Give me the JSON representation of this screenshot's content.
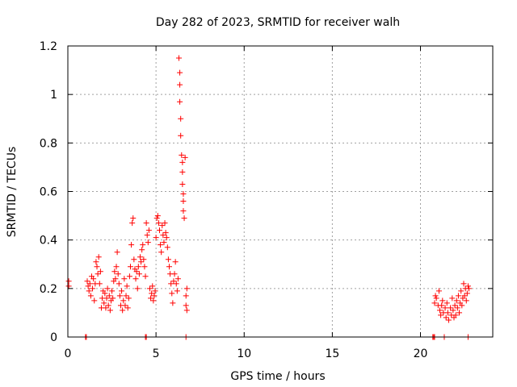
{
  "chart_data": {
    "type": "scatter",
    "title": "Day 282 of 2023, SRMTID for receiver walh",
    "xlabel": "GPS time / hours",
    "ylabel": "SRMTID / TECUs",
    "xlim": [
      0,
      24.1
    ],
    "ylim": [
      0,
      1.2
    ],
    "x_ticks": [
      0,
      5,
      10,
      15,
      20
    ],
    "x_tick_labels": [
      "0",
      "5",
      "10",
      "15",
      "20"
    ],
    "y_ticks": [
      0,
      0.2,
      0.4,
      0.6,
      0.8,
      1.0,
      1.2
    ],
    "y_tick_labels": [
      "0",
      "0.2",
      "0.4",
      "0.6",
      "0.8",
      "1",
      "1.2"
    ],
    "grid": true,
    "marker": "plus",
    "color": "#ff0000",
    "series": [
      {
        "name": "SRMTID",
        "points": [
          [
            0.05,
            0.23
          ],
          [
            0.05,
            0.21
          ],
          [
            1.0,
            0.0
          ],
          [
            1.05,
            0.0
          ],
          [
            1.1,
            0.23
          ],
          [
            1.15,
            0.21
          ],
          [
            1.2,
            0.19
          ],
          [
            1.25,
            0.22
          ],
          [
            1.3,
            0.17
          ],
          [
            1.35,
            0.25
          ],
          [
            1.4,
            0.2
          ],
          [
            1.45,
            0.24
          ],
          [
            1.5,
            0.15
          ],
          [
            1.55,
            0.22
          ],
          [
            1.6,
            0.31
          ],
          [
            1.65,
            0.29
          ],
          [
            1.7,
            0.26
          ],
          [
            1.75,
            0.33
          ],
          [
            1.8,
            0.22
          ],
          [
            1.85,
            0.27
          ],
          [
            1.9,
            0.12
          ],
          [
            1.95,
            0.16
          ],
          [
            2.0,
            0.19
          ],
          [
            2.05,
            0.14
          ],
          [
            2.1,
            0.18
          ],
          [
            2.15,
            0.12
          ],
          [
            2.2,
            0.16
          ],
          [
            2.25,
            0.2
          ],
          [
            2.3,
            0.13
          ],
          [
            2.35,
            0.17
          ],
          [
            2.4,
            0.11
          ],
          [
            2.45,
            0.15
          ],
          [
            2.5,
            0.19
          ],
          [
            2.55,
            0.16
          ],
          [
            2.6,
            0.23
          ],
          [
            2.65,
            0.27
          ],
          [
            2.7,
            0.24
          ],
          [
            2.75,
            0.29
          ],
          [
            2.8,
            0.35
          ],
          [
            2.85,
            0.26
          ],
          [
            2.9,
            0.22
          ],
          [
            2.95,
            0.17
          ],
          [
            3.0,
            0.13
          ],
          [
            3.05,
            0.19
          ],
          [
            3.1,
            0.11
          ],
          [
            3.15,
            0.15
          ],
          [
            3.2,
            0.24
          ],
          [
            3.25,
            0.13
          ],
          [
            3.3,
            0.17
          ],
          [
            3.35,
            0.21
          ],
          [
            3.4,
            0.12
          ],
          [
            3.45,
            0.16
          ],
          [
            3.5,
            0.25
          ],
          [
            3.55,
            0.29
          ],
          [
            3.6,
            0.38
          ],
          [
            3.65,
            0.47
          ],
          [
            3.7,
            0.49
          ],
          [
            3.75,
            0.32
          ],
          [
            3.8,
            0.28
          ],
          [
            3.85,
            0.24
          ],
          [
            3.9,
            0.27
          ],
          [
            3.95,
            0.2
          ],
          [
            4.0,
            0.29
          ],
          [
            4.05,
            0.26
          ],
          [
            4.1,
            0.33
          ],
          [
            4.15,
            0.31
          ],
          [
            4.2,
            0.36
          ],
          [
            4.25,
            0.38
          ],
          [
            4.3,
            0.32
          ],
          [
            4.35,
            0.29
          ],
          [
            4.4,
            0.25
          ],
          [
            4.45,
            0.47
          ],
          [
            4.5,
            0.42
          ],
          [
            4.55,
            0.39
          ],
          [
            4.6,
            0.44
          ],
          [
            4.65,
            0.2
          ],
          [
            4.7,
            0.16
          ],
          [
            4.75,
            0.18
          ],
          [
            4.8,
            0.21
          ],
          [
            4.85,
            0.15
          ],
          [
            4.9,
            0.17
          ],
          [
            4.95,
            0.19
          ],
          [
            5.0,
            0.41
          ],
          [
            5.05,
            0.49
          ],
          [
            5.1,
            0.5
          ],
          [
            5.15,
            0.47
          ],
          [
            5.2,
            0.44
          ],
          [
            5.25,
            0.38
          ],
          [
            5.3,
            0.35
          ],
          [
            5.35,
            0.46
          ],
          [
            5.4,
            0.42
          ],
          [
            5.45,
            0.39
          ],
          [
            5.5,
            0.47
          ],
          [
            5.55,
            0.43
          ],
          [
            5.6,
            0.41
          ],
          [
            5.65,
            0.37
          ],
          [
            5.7,
            0.32
          ],
          [
            5.75,
            0.29
          ],
          [
            5.8,
            0.26
          ],
          [
            5.85,
            0.22
          ],
          [
            5.9,
            0.18
          ],
          [
            5.95,
            0.14
          ],
          [
            6.0,
            0.23
          ],
          [
            6.05,
            0.26
          ],
          [
            6.1,
            0.31
          ],
          [
            6.15,
            0.22
          ],
          [
            6.2,
            0.19
          ],
          [
            6.25,
            0.24
          ],
          [
            6.3,
            1.15
          ],
          [
            6.35,
            1.09
          ],
          [
            6.35,
            1.04
          ],
          [
            6.35,
            0.97
          ],
          [
            6.4,
            0.9
          ],
          [
            6.4,
            0.83
          ],
          [
            6.45,
            0.75
          ],
          [
            6.5,
            0.72
          ],
          [
            6.5,
            0.68
          ],
          [
            6.5,
            0.63
          ],
          [
            6.55,
            0.59
          ],
          [
            6.55,
            0.56
          ],
          [
            6.55,
            0.52
          ],
          [
            6.6,
            0.49
          ],
          [
            6.65,
            0.74
          ],
          [
            6.7,
            0.17
          ],
          [
            6.7,
            0.13
          ],
          [
            6.75,
            0.2
          ],
          [
            6.75,
            0.11
          ],
          [
            6.7,
            0.0
          ],
          [
            4.4,
            0.0
          ],
          [
            4.45,
            0.0
          ],
          [
            20.7,
            0.0
          ],
          [
            20.75,
            0.0
          ],
          [
            20.8,
            0.0
          ],
          [
            20.8,
            0.14
          ],
          [
            20.85,
            0.17
          ],
          [
            20.9,
            0.16
          ],
          [
            21.0,
            0.13
          ],
          [
            21.05,
            0.19
          ],
          [
            21.1,
            0.11
          ],
          [
            21.15,
            0.09
          ],
          [
            21.2,
            0.13
          ],
          [
            21.25,
            0.15
          ],
          [
            21.3,
            0.1
          ],
          [
            21.35,
            0.0
          ],
          [
            21.4,
            0.12
          ],
          [
            21.45,
            0.08
          ],
          [
            21.5,
            0.14
          ],
          [
            21.55,
            0.1
          ],
          [
            21.6,
            0.07
          ],
          [
            21.7,
            0.12
          ],
          [
            21.75,
            0.09
          ],
          [
            21.8,
            0.16
          ],
          [
            21.85,
            0.11
          ],
          [
            21.9,
            0.08
          ],
          [
            21.95,
            0.13
          ],
          [
            22.0,
            0.09
          ],
          [
            22.05,
            0.15
          ],
          [
            22.1,
            0.12
          ],
          [
            22.15,
            0.17
          ],
          [
            22.2,
            0.1
          ],
          [
            22.25,
            0.14
          ],
          [
            22.3,
            0.19
          ],
          [
            22.35,
            0.13
          ],
          [
            22.4,
            0.16
          ],
          [
            22.45,
            0.22
          ],
          [
            22.5,
            0.17
          ],
          [
            22.55,
            0.2
          ],
          [
            22.6,
            0.15
          ],
          [
            22.65,
            0.18
          ],
          [
            22.7,
            0.21
          ],
          [
            22.75,
            0.2
          ],
          [
            22.7,
            0.0
          ]
        ]
      }
    ]
  }
}
